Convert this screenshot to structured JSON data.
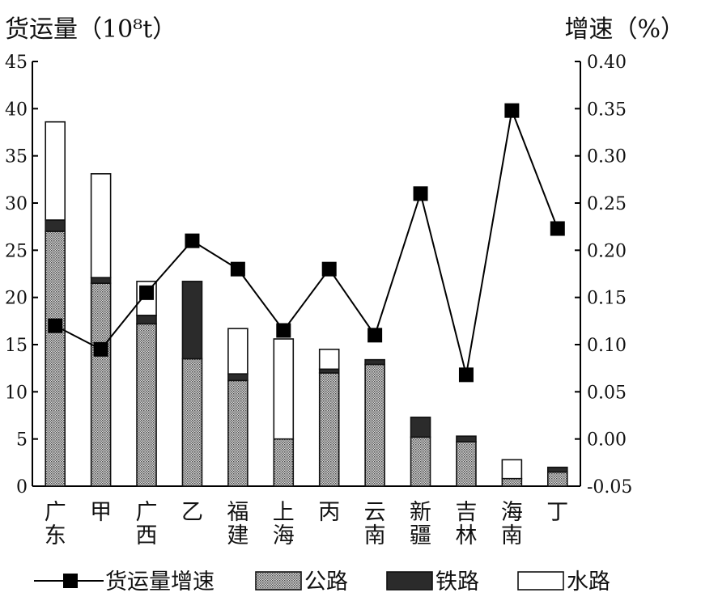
{
  "chart_data": {
    "type": "bar",
    "stacked": true,
    "title_left": "货运量（10⁸t）",
    "title_right": "增速（%）",
    "categories": [
      "广\n东",
      "甲",
      "广\n西",
      "乙",
      "福\n建",
      "上\n海",
      "丙",
      "云\n南",
      "新\n疆",
      "吉\n林",
      "海\n南",
      "丁"
    ],
    "series": [
      {
        "name": "公路",
        "values": [
          27.0,
          21.5,
          17.2,
          13.5,
          11.2,
          5.0,
          12.0,
          12.9,
          5.2,
          4.7,
          0.8,
          1.5
        ],
        "color": "#b5b5b5"
      },
      {
        "name": "铁路",
        "values": [
          1.2,
          0.6,
          0.9,
          8.2,
          0.7,
          0.0,
          0.4,
          0.5,
          2.1,
          0.6,
          0.0,
          0.5
        ],
        "color": "#2b2b2b"
      },
      {
        "name": "水路",
        "values": [
          10.4,
          11.0,
          3.6,
          0.0,
          4.8,
          10.6,
          2.1,
          0.0,
          0.0,
          0.0,
          2.0,
          0.0
        ],
        "color": "#ffffff"
      }
    ],
    "line_series": {
      "name": "货运量增速",
      "values": [
        0.12,
        0.095,
        0.155,
        0.21,
        0.18,
        0.115,
        0.18,
        0.11,
        0.26,
        0.068,
        0.348,
        0.223
      ]
    },
    "y_left": {
      "min": 0,
      "max": 45,
      "ticks": [
        "0",
        "5",
        "10",
        "15",
        "20",
        "25",
        "30",
        "35",
        "40",
        "45"
      ]
    },
    "y_right": {
      "min": -0.05,
      "max": 0.4,
      "ticks": [
        "-0.05",
        "0.00",
        "0.05",
        "0.10",
        "0.15",
        "0.20",
        "0.25",
        "0.30",
        "0.35",
        "0.40"
      ]
    },
    "legend_position": "bottom"
  }
}
